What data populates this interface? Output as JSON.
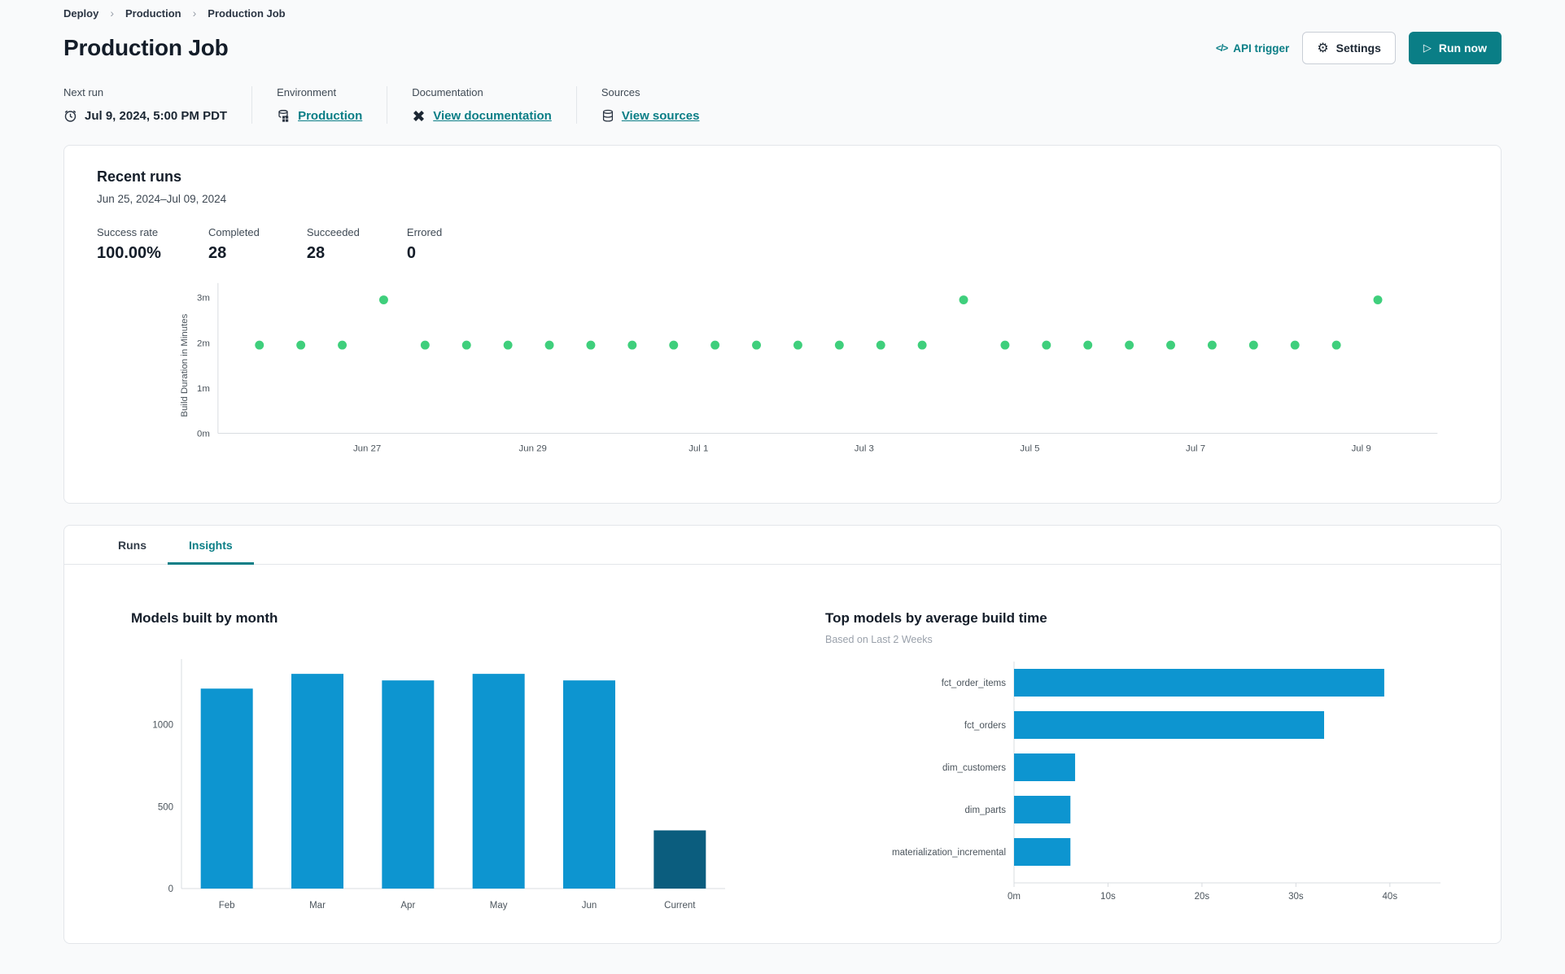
{
  "breadcrumb": {
    "items": [
      {
        "label": "Deploy"
      },
      {
        "label": "Production"
      },
      {
        "label": "Production Job"
      }
    ],
    "separator": "›"
  },
  "header": {
    "title": "Production Job",
    "api_trigger_label": "API trigger",
    "api_trigger_icon": "</>",
    "settings_label": "Settings",
    "settings_icon": "⚙",
    "run_now_label": "Run now",
    "run_now_icon": "▷"
  },
  "info": {
    "next_run": {
      "label": "Next run",
      "value": "Jul 9, 2024, 5:00 PM PDT"
    },
    "environment": {
      "label": "Environment",
      "link": "Production"
    },
    "documentation": {
      "label": "Documentation",
      "link": "View documentation"
    },
    "sources": {
      "label": "Sources",
      "link": "View sources"
    }
  },
  "recent_runs": {
    "title": "Recent runs",
    "date_range": "Jun 25, 2024–Jul 09, 2024",
    "stats": [
      {
        "label": "Success rate",
        "value": "100.00%"
      },
      {
        "label": "Completed",
        "value": "28"
      },
      {
        "label": "Succeeded",
        "value": "28"
      },
      {
        "label": "Errored",
        "value": "0"
      }
    ]
  },
  "tabs": [
    {
      "label": "Runs",
      "active": false
    },
    {
      "label": "Insights",
      "active": true
    }
  ],
  "colors": {
    "accent_teal": "#0a7e86",
    "dot_green": "#3fcf7c",
    "bar_blue": "#0d95d0",
    "bar_dark_blue": "#0b5d7e",
    "axis_line": "#d8dce0",
    "tick_text": "#4b545c",
    "text_dark": "#141d29"
  },
  "chart_data": [
    {
      "type": "scatter",
      "name": "recent-runs-build-duration",
      "ylabel": "Build Duration in Minutes",
      "yticks": [
        {
          "v": 0,
          "label": "0m"
        },
        {
          "v": 1,
          "label": "1m"
        },
        {
          "v": 2,
          "label": "2m"
        },
        {
          "v": 3,
          "label": "3m"
        }
      ],
      "ylim": [
        0,
        3.4
      ],
      "xlim": [
        -1,
        28.44
      ],
      "xticks": [
        {
          "u": 2.6,
          "label": "Jun 27"
        },
        {
          "u": 6.6,
          "label": "Jun 29"
        },
        {
          "u": 10.6,
          "label": "Jul 1"
        },
        {
          "u": 14.6,
          "label": "Jul 3"
        },
        {
          "u": 18.6,
          "label": "Jul 5"
        },
        {
          "u": 22.6,
          "label": "Jul 7"
        },
        {
          "u": 26.6,
          "label": "Jul 9"
        }
      ],
      "points_minutes": [
        1.95,
        1.95,
        1.95,
        2.95,
        1.95,
        1.95,
        1.95,
        1.95,
        1.95,
        1.95,
        1.95,
        1.95,
        1.95,
        1.95,
        1.95,
        1.95,
        1.95,
        2.95,
        1.95,
        1.95,
        1.95,
        1.95,
        1.95,
        1.95,
        1.95,
        1.95,
        1.95,
        2.95
      ]
    },
    {
      "type": "bar",
      "title": "Models built by month",
      "categories": [
        "Feb",
        "Mar",
        "Apr",
        "May",
        "Jun",
        "Current"
      ],
      "values": [
        1220,
        1310,
        1270,
        1310,
        1270,
        355
      ],
      "bar_colors": [
        "#0d95d0",
        "#0d95d0",
        "#0d95d0",
        "#0d95d0",
        "#0d95d0",
        "#0b5d7e"
      ],
      "yticks": [
        0,
        500,
        1000
      ],
      "ylim": [
        0,
        1400
      ]
    },
    {
      "type": "hbar",
      "title": "Top models by average build time",
      "subtitle": "Based on Last 2 Weeks",
      "categories": [
        "fct_order_items",
        "fct_orders",
        "dim_customers",
        "dim_parts",
        "materialization_incremental"
      ],
      "values_seconds": [
        39.4,
        33,
        6.5,
        6,
        6
      ],
      "xticks": [
        {
          "v": 0,
          "label": "0m"
        },
        {
          "v": 10,
          "label": "10s"
        },
        {
          "v": 20,
          "label": "20s"
        },
        {
          "v": 30,
          "label": "30s"
        },
        {
          "v": 40,
          "label": "40s"
        }
      ],
      "xlim": [
        0,
        44
      ]
    }
  ]
}
